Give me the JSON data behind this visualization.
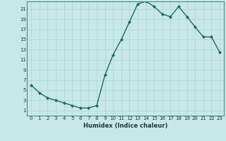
{
  "x": [
    0,
    1,
    2,
    3,
    4,
    5,
    6,
    7,
    8,
    9,
    10,
    11,
    12,
    13,
    14,
    15,
    16,
    17,
    18,
    19,
    20,
    21,
    22,
    23
  ],
  "y": [
    6,
    4.5,
    3.5,
    3,
    2.5,
    2,
    1.5,
    1.5,
    2,
    8,
    12,
    15,
    18.5,
    22,
    22.5,
    21.5,
    20,
    19.5,
    21.5,
    19.5,
    17.5,
    15.5,
    15.5,
    12.5
  ],
  "line_color": "#1a6b5a",
  "marker": "D",
  "marker_size": 2,
  "bg_color": "#c8e8e8",
  "grid_color": "#aad4d4",
  "xlabel": "Humidex (Indice chaleur)",
  "xlim": [
    -0.5,
    23.5
  ],
  "ylim": [
    0,
    22.5
  ],
  "yticks": [
    1,
    3,
    5,
    7,
    9,
    11,
    13,
    15,
    17,
    19,
    21
  ],
  "xticks": [
    0,
    1,
    2,
    3,
    4,
    5,
    6,
    7,
    8,
    9,
    10,
    11,
    12,
    13,
    14,
    15,
    16,
    17,
    18,
    19,
    20,
    21,
    22,
    23
  ],
  "tick_fontsize": 5.0,
  "xlabel_fontsize": 6.0,
  "line_width": 1.0,
  "spine_color": "#4a8888"
}
